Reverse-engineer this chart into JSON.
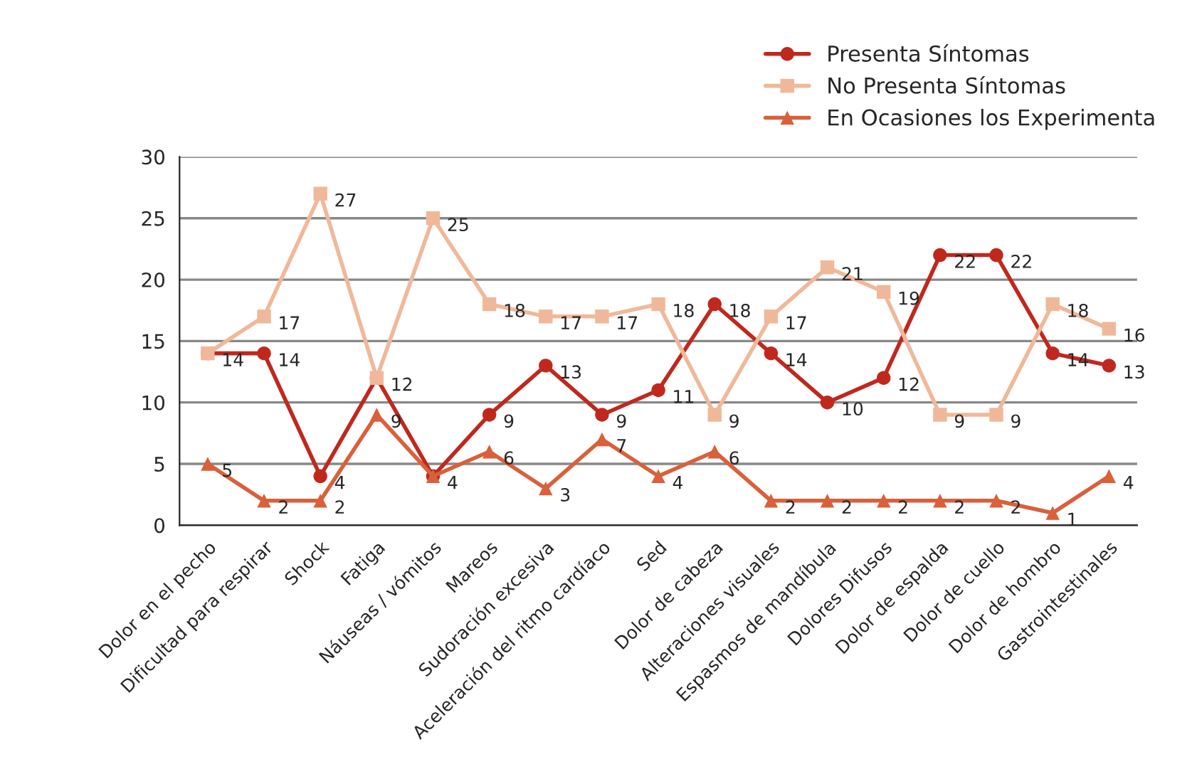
{
  "chart_data": {
    "type": "line",
    "categories": [
      "Dolor en el pecho",
      "Dificultad para respirar",
      "Shock",
      "Fatiga",
      "Náuseas / vómitos",
      "Mareos",
      "Sudoración excesiva",
      "Aceleración del ritmo cardíaco",
      "Sed",
      "Dolor de cabeza",
      "Alteraciones visuales",
      "Espasmos de mandíbula",
      "Dolores Difusos",
      "Dolor de espalda",
      "Dolor de cuello",
      "Dolor de hombro",
      "Gastrointestinales"
    ],
    "series": [
      {
        "name": "Presenta Síntomas",
        "color": "#c0281e",
        "marker": "circle",
        "values": [
          14,
          14,
          4,
          12,
          4,
          9,
          13,
          9,
          11,
          18,
          14,
          10,
          12,
          22,
          22,
          14,
          13
        ],
        "value_labels": [
          "14",
          "14",
          "4",
          "12",
          "4",
          "9",
          "13",
          "9",
          "11",
          "18",
          "14",
          "10",
          "12",
          "22",
          "22",
          "14",
          "13"
        ]
      },
      {
        "name": "No Presenta Síntomas",
        "color": "#f0b89a",
        "marker": "square",
        "values": [
          14,
          17,
          27,
          12,
          25,
          18,
          17,
          17,
          18,
          9,
          17,
          21,
          19,
          9,
          9,
          18,
          16
        ],
        "value_labels": [
          null,
          "17",
          "27",
          null,
          "25",
          "18",
          "17",
          "17",
          "18",
          "9",
          "17",
          "21",
          "19",
          "9",
          "9",
          "18",
          "16"
        ]
      },
      {
        "name": "En Ocasiones los Experimenta",
        "color": "#d9603a",
        "marker": "triangle",
        "values": [
          5,
          2,
          2,
          9,
          4,
          6,
          3,
          7,
          4,
          6,
          2,
          2,
          2,
          2,
          2,
          1,
          4
        ],
        "value_labels": [
          "5",
          "2",
          "2",
          "9",
          null,
          "6",
          "3",
          "7",
          "4",
          "6",
          "2",
          "2",
          "2",
          "2",
          "2",
          "1",
          "4"
        ]
      }
    ],
    "ylim": [
      0,
      30
    ],
    "yticks": [
      0,
      5,
      10,
      15,
      20,
      25,
      30
    ],
    "grid": "y",
    "legend": "top right"
  }
}
